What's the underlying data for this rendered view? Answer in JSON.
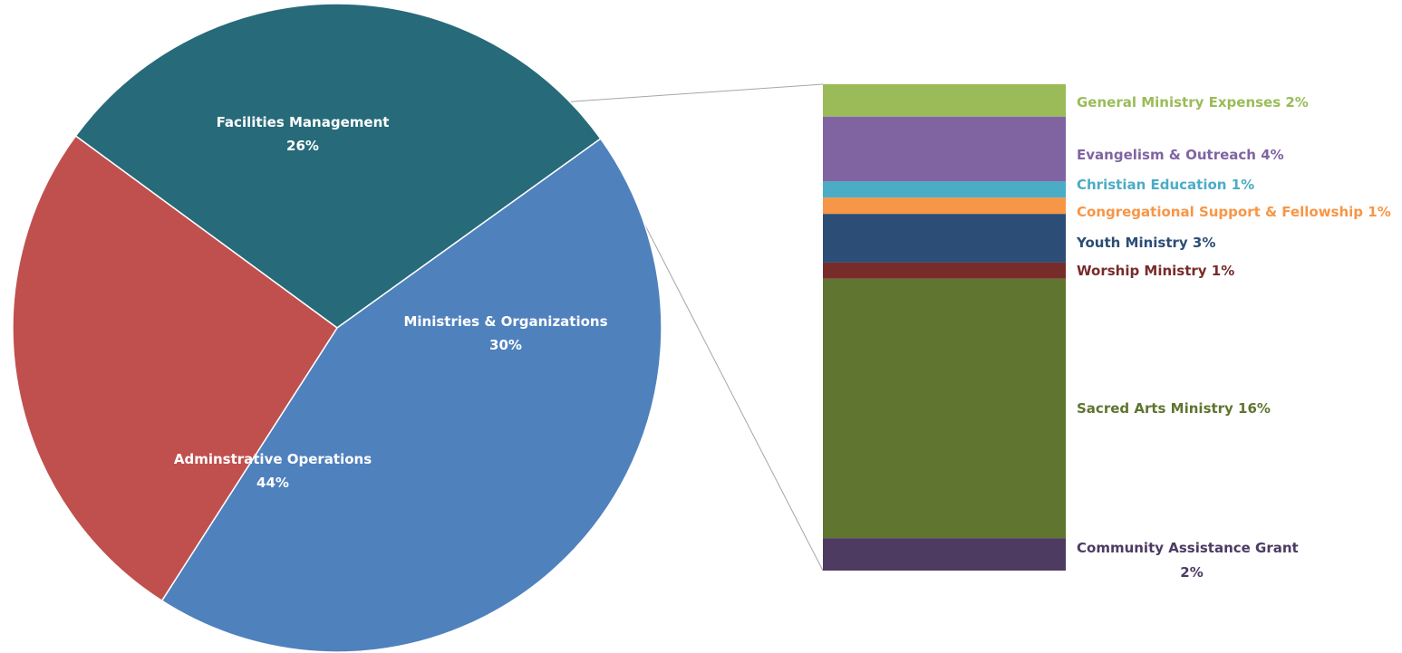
{
  "chart_data": {
    "type": "pie",
    "subtype": "bar-of-pie",
    "pie_slices": [
      {
        "label": "Adminstrative Operations",
        "pct_text": "44%",
        "value": 44,
        "color": "#4F81BD"
      },
      {
        "label": "Ministries & Organizations",
        "pct_text": "30%",
        "value": 30,
        "color": "#276A7A"
      },
      {
        "label": "Facilities Management",
        "pct_text": "26%",
        "value": 26,
        "color": "#C0504D"
      }
    ],
    "exploded_slice": "Ministries & Organizations",
    "breakdown": [
      {
        "label": "General Ministry Expenses 2%",
        "value": 2,
        "color": "#9BBB59"
      },
      {
        "label": "Evangelism & Outreach 4%",
        "value": 4,
        "color": "#8064A2"
      },
      {
        "label": "Christian Education 1%",
        "value": 1,
        "color": "#4BACC6"
      },
      {
        "label": "Congregational Support & Fellowship 1%",
        "value": 1,
        "color": "#F79646"
      },
      {
        "label": "Youth Ministry 3%",
        "value": 3,
        "color": "#2C4D75"
      },
      {
        "label": "Worship Ministry 1%",
        "value": 1,
        "color": "#772C2A"
      },
      {
        "label": "Sacred Arts Ministry 16%",
        "value": 16,
        "color": "#5F7530"
      },
      {
        "label": "Community Assistance Grant",
        "label_line2": "2%",
        "value": 2,
        "color": "#4D3B62"
      }
    ]
  }
}
